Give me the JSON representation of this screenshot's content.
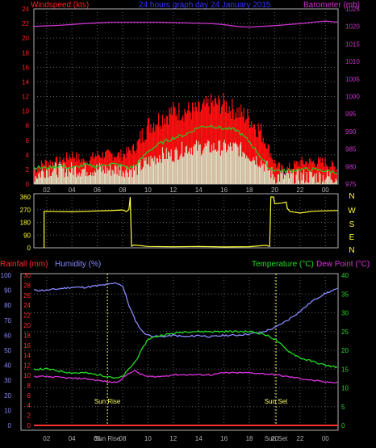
{
  "header": {
    "left": "Windspeed (kts)",
    "center": "24 hours graph day  24 January 2015",
    "right": "Barometer (mb)"
  },
  "colors": {
    "wind_axis": "#ff2020",
    "baro_axis": "#cc33cc",
    "dir_axis": "#ffff33",
    "rain": "#ff3030",
    "humidity": "#8888ff",
    "temperature": "#22dd22",
    "dewpoint": "#dd33dd",
    "wind_gust": "#ff1010",
    "wind_avg": "#d8f0d0",
    "wind_mean_line": "#22cc22",
    "sun": "#ffff66"
  },
  "chart_data": [
    {
      "type": "line",
      "name": "wind-barometer",
      "x_ticks": [
        "02",
        "04",
        "06",
        "08",
        "10",
        "12",
        "14",
        "16",
        "18",
        "20",
        "22",
        "00"
      ],
      "left_axis": {
        "label": "Windspeed (kts)",
        "range": [
          0,
          24
        ],
        "ticks": [
          0,
          2,
          4,
          6,
          8,
          10,
          12,
          14,
          16,
          18,
          20,
          22,
          24
        ]
      },
      "right_axis": {
        "label": "Barometer (mb)",
        "range": [
          975,
          1025
        ],
        "ticks": [
          975,
          980,
          985,
          990,
          995,
          1000,
          1005,
          1010,
          1015,
          1020,
          1025
        ]
      },
      "x_range": [
        1,
        25
      ],
      "series": [
        {
          "role": "barometer",
          "axis": "right",
          "x": [
            1,
            3,
            5,
            7,
            9,
            11,
            13,
            15,
            16,
            17,
            18,
            19,
            20,
            21,
            22,
            23,
            24,
            25
          ],
          "y": [
            1020,
            1020.3,
            1020.8,
            1021.2,
            1021.2,
            1021.2,
            1021,
            1020.8,
            1020.5,
            1020,
            1019.8,
            1020,
            1020.2,
            1020.5,
            1020.8,
            1021.2,
            1021.5,
            1021.2
          ]
        },
        {
          "role": "gust",
          "axis": "left",
          "x": [
            1,
            2,
            3,
            4,
            5,
            6,
            7,
            8,
            9,
            10,
            11,
            12,
            13,
            14,
            15,
            16,
            17,
            18,
            19,
            20,
            20.5,
            21,
            22,
            23,
            24,
            25
          ],
          "y": [
            2,
            3,
            3,
            4,
            3,
            4,
            4,
            4,
            5,
            8,
            9,
            10,
            10,
            10,
            11,
            11,
            10,
            9,
            7,
            3,
            2,
            2,
            3,
            3,
            3,
            2
          ]
        },
        {
          "role": "average",
          "axis": "left",
          "x": [
            1,
            2,
            3,
            4,
            5,
            6,
            7,
            8,
            9,
            10,
            11,
            12,
            13,
            14,
            15,
            16,
            17,
            18,
            19,
            20,
            20.5,
            21,
            22,
            23,
            24,
            25
          ],
          "y": [
            1,
            2,
            2,
            2,
            2,
            2,
            2,
            2,
            2,
            3,
            4,
            4,
            5,
            5,
            5,
            5,
            5,
            4,
            3,
            1,
            1,
            1,
            1,
            1,
            1,
            1
          ]
        },
        {
          "role": "mean-line",
          "axis": "left",
          "x": [
            1,
            2,
            3,
            4,
            5,
            6,
            7,
            8,
            8.5,
            9,
            10,
            11,
            12,
            13,
            14,
            15,
            16,
            17,
            18,
            19,
            19.5,
            20,
            21,
            22,
            23,
            24,
            25
          ],
          "y": [
            2.3,
            2.2,
            2.5,
            2.2,
            2.6,
            2.4,
            2.8,
            2.5,
            2.2,
            2.5,
            4.5,
            5.6,
            6.3,
            6.8,
            7.8,
            8.0,
            7.6,
            7.4,
            5.8,
            3.5,
            2.3,
            1.9,
            1.8,
            2,
            2,
            1.8,
            1.6
          ]
        }
      ]
    },
    {
      "type": "line",
      "name": "wind-direction",
      "x_ticks": [
        "02",
        "04",
        "06",
        "08",
        "10",
        "12",
        "14",
        "16",
        "18",
        "20",
        "22",
        "00"
      ],
      "left_axis": {
        "range": [
          0,
          360
        ],
        "ticks": [
          0,
          90,
          180,
          270,
          360
        ]
      },
      "right_labels": [
        "N",
        "W",
        "S",
        "E",
        "N"
      ],
      "x_range": [
        1,
        25
      ],
      "series": [
        {
          "role": "direction",
          "x": [
            1.8,
            1.8,
            2,
            4,
            6,
            7,
            8,
            8.3,
            8.5,
            8.6,
            8.7,
            8.9,
            10,
            12,
            14,
            16,
            18,
            19.3,
            19.6,
            19.7,
            19.9,
            20,
            20.5,
            20.9,
            21,
            21.2,
            22,
            23,
            24,
            25
          ],
          "y": [
            0,
            255,
            255,
            260,
            260,
            265,
            265,
            262,
            270,
            360,
            10,
            20,
            15,
            10,
            8,
            8,
            10,
            12,
            15,
            360,
            360,
            315,
            320,
            320,
            275,
            255,
            250,
            260,
            265,
            262
          ]
        }
      ]
    },
    {
      "type": "line",
      "name": "rain-humidity-temperature",
      "header": {
        "rain": "Rainfall (mm)",
        "humidity": "Humidity (%)",
        "temperature": "Temperature (°C)",
        "dewpoint": "Dew Point (°C)"
      },
      "x_ticks": [
        "02",
        "04",
        "06",
        "08",
        "10",
        "12",
        "14",
        "16",
        "18",
        "20",
        "22",
        "00"
      ],
      "humidity_axis": {
        "range": [
          0,
          100
        ],
        "ticks": [
          0,
          10,
          20,
          30,
          40,
          50,
          60,
          70,
          80,
          90,
          100
        ]
      },
      "rain_axis": {
        "range": [
          0,
          30
        ],
        "ticks": [
          0,
          2,
          4,
          6,
          8,
          10,
          12,
          14,
          16,
          18,
          20,
          22,
          24,
          26,
          28,
          30
        ]
      },
      "temp_axis": {
        "range": [
          0,
          40
        ],
        "ticks": [
          0,
          5,
          10,
          15,
          20,
          25,
          30,
          35,
          40
        ]
      },
      "x_range": [
        1,
        25
      ],
      "annotations": [
        {
          "label": "Sun Rise",
          "x": 6.8
        },
        {
          "label": "Sun Set",
          "x": 20.1
        }
      ],
      "sub_tick_labels": [
        {
          "label": "Sun Rise",
          "x": 6.8
        },
        {
          "label": "Sun Set",
          "x": 20.1
        }
      ],
      "series": [
        {
          "role": "humidity",
          "axis": "humidity",
          "x": [
            1,
            2,
            3,
            4,
            5,
            6,
            7,
            7.5,
            8,
            8.5,
            9,
            9.5,
            10,
            11,
            12,
            13,
            14,
            15,
            16,
            17,
            18,
            19,
            20,
            21,
            22,
            23,
            24,
            25
          ],
          "y": [
            90,
            90,
            91,
            92,
            92,
            93,
            94,
            95,
            93,
            80,
            70,
            63,
            60,
            59,
            60,
            59,
            60,
            59,
            60,
            60,
            61,
            62,
            65,
            70,
            76,
            83,
            88,
            91
          ]
        },
        {
          "role": "temperature",
          "axis": "temp",
          "x": [
            1,
            2,
            3,
            4,
            5,
            6,
            7,
            7.5,
            8,
            8.5,
            9,
            9.5,
            10,
            11,
            12,
            13,
            14,
            15,
            16,
            17,
            18,
            19,
            20,
            21,
            22,
            23,
            24,
            25
          ],
          "y": [
            15,
            15,
            14.5,
            14,
            14,
            13.5,
            13,
            12.5,
            13,
            15,
            17,
            20,
            23,
            24,
            24.5,
            25,
            25,
            25,
            25,
            25,
            25,
            24.5,
            23,
            20,
            18,
            17,
            16,
            15.5
          ]
        },
        {
          "role": "dewpoint",
          "axis": "temp",
          "x": [
            1,
            2,
            3,
            4,
            5,
            6,
            7,
            7.5,
            8,
            8.5,
            9,
            9.5,
            10,
            11,
            12,
            13,
            14,
            15,
            16,
            17,
            18,
            19,
            20,
            21,
            22,
            23,
            24,
            25
          ],
          "y": [
            13,
            13,
            12.8,
            12.5,
            12.5,
            12,
            11.5,
            11.5,
            12.5,
            14,
            14.5,
            13.5,
            13,
            13,
            13.5,
            13.5,
            13.5,
            13.5,
            14,
            14,
            14,
            13.8,
            13.5,
            13,
            12.5,
            12,
            11.5,
            11.5
          ]
        },
        {
          "role": "rain",
          "axis": "rain",
          "x": [
            1,
            25
          ],
          "y": [
            0,
            0
          ]
        }
      ]
    }
  ]
}
